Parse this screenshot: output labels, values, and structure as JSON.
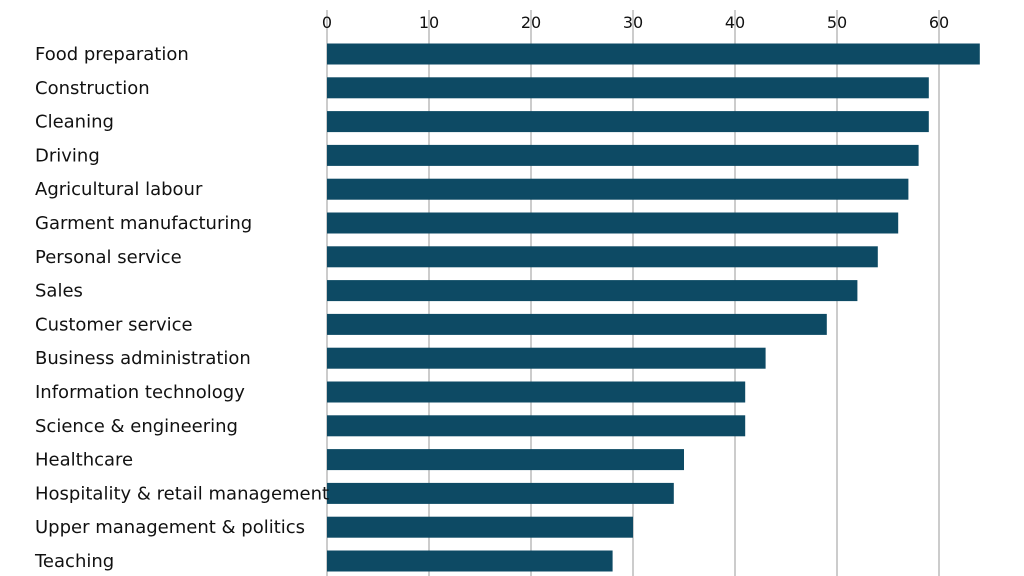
{
  "colors": {
    "bar": "#0d4a64",
    "grid": "#9a9a9a",
    "text": "#111111",
    "background": "#ffffff"
  },
  "chart_data": {
    "type": "bar",
    "orientation": "horizontal",
    "title": "",
    "xlabel": "",
    "ylabel": "",
    "xlim": [
      0,
      65
    ],
    "ticks": [
      0,
      10,
      20,
      30,
      40,
      50,
      60
    ],
    "tick_labels": [
      "0",
      "10",
      "20",
      "30",
      "40",
      "50",
      "60"
    ],
    "grid": "vertical",
    "categories": [
      "Food preparation",
      "Construction",
      "Cleaning",
      "Driving",
      "Agricultural labour",
      "Garment manufacturing",
      "Personal service",
      "Sales",
      "Customer service",
      "Business administration",
      "Information technology",
      "Science & engineering",
      "Healthcare",
      "Hospitality & retail management",
      "Upper management & politics",
      "Teaching"
    ],
    "values": [
      64,
      59,
      59,
      58,
      57,
      56,
      54,
      52,
      49,
      43,
      41,
      41,
      35,
      34,
      30,
      28
    ]
  }
}
